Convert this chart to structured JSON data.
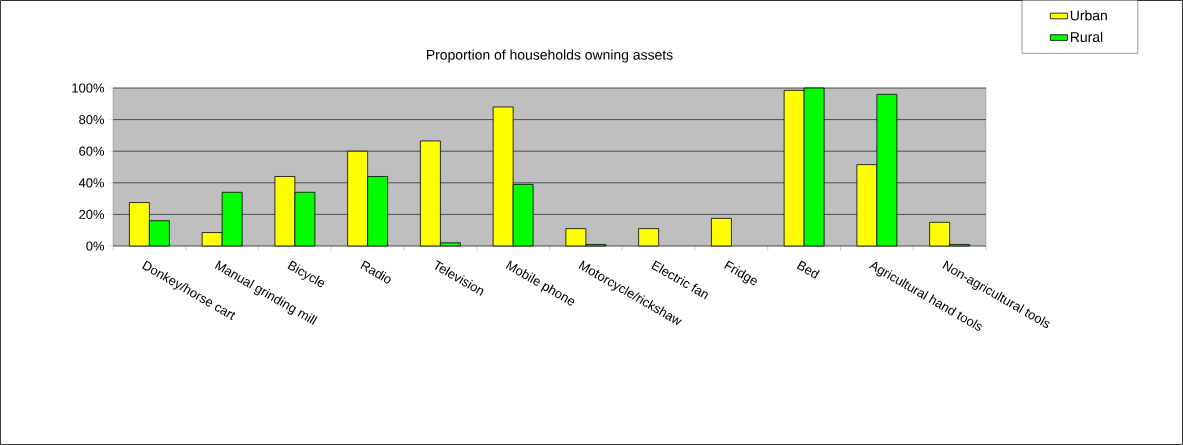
{
  "chart_data": {
    "type": "bar",
    "title": "Proportion of households owning assets",
    "categories": [
      "Donkey/horse cart",
      "Manual grinding mill",
      "Bicycle",
      "Radio",
      "Television",
      "Mobile phone",
      "Motorcycle/rickshaw",
      "Electric fan",
      "Fridge",
      "Bed",
      "Agricultural hand tools",
      "Non-agricultural tools"
    ],
    "series": [
      {
        "name": "Urban",
        "color": "#ffff00",
        "values": [
          27.5,
          8.5,
          44,
          60,
          66.5,
          88,
          11,
          11,
          17.5,
          98.5,
          51.5,
          15
        ]
      },
      {
        "name": "Rural",
        "color": "#00ff00",
        "values": [
          16,
          34,
          34,
          44,
          2,
          39,
          1,
          null,
          null,
          100,
          96,
          1
        ]
      }
    ],
    "ylim": [
      0,
      100
    ],
    "yticks": [
      {
        "value": 0,
        "label": "0%"
      },
      {
        "value": 20,
        "label": "20%"
      },
      {
        "value": 40,
        "label": "40%"
      },
      {
        "value": 60,
        "label": "60%"
      },
      {
        "value": 80,
        "label": "80%"
      },
      {
        "value": 100,
        "label": "100%"
      }
    ],
    "grid": "y",
    "legend": "top right"
  }
}
